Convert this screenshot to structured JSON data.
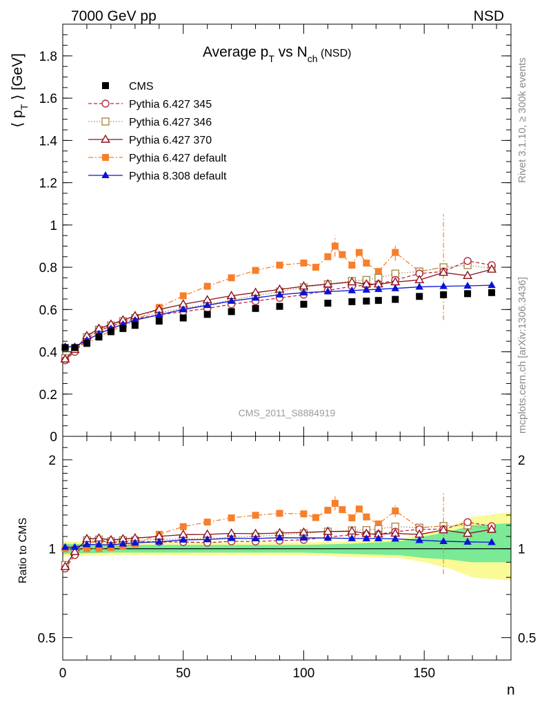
{
  "header": {
    "left": "7000 GeV pp",
    "right": "NSD"
  },
  "side_labels": {
    "rivet": "Rivet 3.1.10, ≥ 300k events",
    "mcplots": "mcplots.cern.ch [arXiv:1306.3436]"
  },
  "chart_data": {
    "type": "scatter",
    "title_parts": {
      "main": "Average p",
      "sub1": "T",
      "mid": " vs N",
      "sub2": "ch",
      "tail": " (NSD)"
    },
    "ylabel_parts": {
      "a": "⟨ p",
      "sub": "T",
      "b": " ⟩ [GeV]"
    },
    "ratio_ylabel": "Ratio to CMS",
    "xlabel": "n",
    "analysis_label": "CMS_2011_S8884919",
    "xlim": [
      0,
      186
    ],
    "ylim": [
      0,
      1.95
    ],
    "ratio_ylim": [
      0.42,
      2.4
    ],
    "ratio_log": true,
    "x_ticks": [
      0,
      50,
      100,
      150
    ],
    "y_ticks": [
      0,
      0.2,
      0.4,
      0.6,
      0.8,
      1,
      1.2,
      1.4,
      1.6,
      1.8
    ],
    "y_tick_labels": [
      "0",
      "0.2",
      "0.4",
      "0.6",
      "0.8",
      "1",
      "1.2",
      "1.4",
      "1.6",
      "1.8"
    ],
    "ratio_ticks": [
      0.5,
      1,
      2
    ],
    "ratio_tick_labels": [
      "0.5",
      "1",
      "2"
    ],
    "colors": {
      "cms": "#000000",
      "p345": "#b22a3a",
      "p346": "#a8874a",
      "p370": "#8b0e1a",
      "p6def": "#f77f2b",
      "p8def": "#0a14d6",
      "band_inner": "#7aea96",
      "band_outer": "#fafa96"
    },
    "series": [
      {
        "key": "cms",
        "name": "CMS",
        "marker": "square-filled",
        "line": "none",
        "x": [
          1,
          5,
          10,
          15,
          20,
          25,
          30,
          40,
          50,
          60,
          70,
          80,
          90,
          100,
          110,
          120,
          126,
          131,
          138,
          148,
          158,
          168,
          178
        ],
        "y": [
          0.42,
          0.42,
          0.44,
          0.47,
          0.495,
          0.51,
          0.525,
          0.545,
          0.56,
          0.577,
          0.59,
          0.605,
          0.615,
          0.625,
          0.63,
          0.637,
          0.64,
          0.643,
          0.648,
          0.662,
          0.67,
          0.675,
          0.68
        ]
      },
      {
        "key": "p345",
        "name": "Pythia 6.427 345",
        "marker": "circle-open",
        "line": "dashed",
        "x": [
          1,
          5,
          10,
          15,
          20,
          25,
          30,
          40,
          50,
          60,
          70,
          80,
          90,
          100,
          110,
          120,
          126,
          131,
          138,
          148,
          158,
          168,
          178
        ],
        "y": [
          0.36,
          0.4,
          0.46,
          0.5,
          0.52,
          0.54,
          0.555,
          0.575,
          0.59,
          0.605,
          0.625,
          0.64,
          0.655,
          0.67,
          0.69,
          0.71,
          0.715,
          0.72,
          0.74,
          0.77,
          0.78,
          0.83,
          0.81
        ]
      },
      {
        "key": "p346",
        "name": "Pythia 6.427 346",
        "marker": "square-open",
        "line": "dotted",
        "x": [
          1,
          5,
          10,
          15,
          20,
          25,
          30,
          40,
          50,
          60,
          70,
          80,
          90,
          100,
          110,
          120,
          126,
          131,
          138,
          148,
          158,
          168,
          178
        ],
        "y": [
          0.37,
          0.41,
          0.47,
          0.505,
          0.525,
          0.545,
          0.56,
          0.585,
          0.605,
          0.625,
          0.645,
          0.665,
          0.685,
          0.705,
          0.72,
          0.735,
          0.74,
          0.75,
          0.77,
          0.78,
          0.8,
          0.81,
          0.795
        ]
      },
      {
        "key": "p370",
        "name": "Pythia 6.427 370",
        "marker": "triangle-open",
        "line": "solid",
        "x": [
          1,
          5,
          10,
          15,
          20,
          25,
          30,
          40,
          50,
          60,
          70,
          80,
          90,
          100,
          110,
          120,
          126,
          131,
          138,
          148,
          158,
          168,
          178
        ],
        "y": [
          0.365,
          0.41,
          0.475,
          0.51,
          0.53,
          0.55,
          0.57,
          0.6,
          0.625,
          0.645,
          0.665,
          0.68,
          0.695,
          0.71,
          0.72,
          0.73,
          0.72,
          0.72,
          0.73,
          0.74,
          0.775,
          0.76,
          0.79
        ]
      },
      {
        "key": "p6def",
        "name": "Pythia 6.427 default",
        "marker": "square-filled",
        "line": "dashdot",
        "x": [
          1,
          5,
          10,
          15,
          20,
          25,
          30,
          40,
          50,
          60,
          70,
          80,
          90,
          100,
          105,
          110,
          113,
          116,
          120,
          123,
          126,
          131,
          138,
          148,
          158,
          168,
          178
        ],
        "y": [
          0.42,
          0.42,
          0.44,
          0.47,
          0.5,
          0.52,
          0.545,
          0.61,
          0.665,
          0.71,
          0.75,
          0.785,
          0.81,
          0.82,
          0.8,
          0.85,
          0.9,
          0.86,
          0.81,
          0.87,
          0.82,
          0.78,
          0.87,
          0.78,
          0.8,
          null,
          null
        ],
        "errors": {
          "113": 0.05,
          "158": 0.25,
          "138": 0.04
        }
      },
      {
        "key": "p8def",
        "name": "Pythia 8.308 default",
        "marker": "triangle-filled",
        "line": "solid",
        "x": [
          1,
          5,
          10,
          15,
          20,
          25,
          30,
          40,
          50,
          60,
          70,
          80,
          90,
          100,
          110,
          120,
          126,
          131,
          138,
          148,
          158,
          168,
          178
        ],
        "y": [
          0.425,
          0.425,
          0.455,
          0.485,
          0.51,
          0.53,
          0.55,
          0.575,
          0.6,
          0.62,
          0.64,
          0.655,
          0.67,
          0.68,
          0.685,
          0.69,
          0.693,
          0.696,
          0.7,
          0.707,
          0.71,
          0.712,
          0.715
        ]
      }
    ]
  }
}
